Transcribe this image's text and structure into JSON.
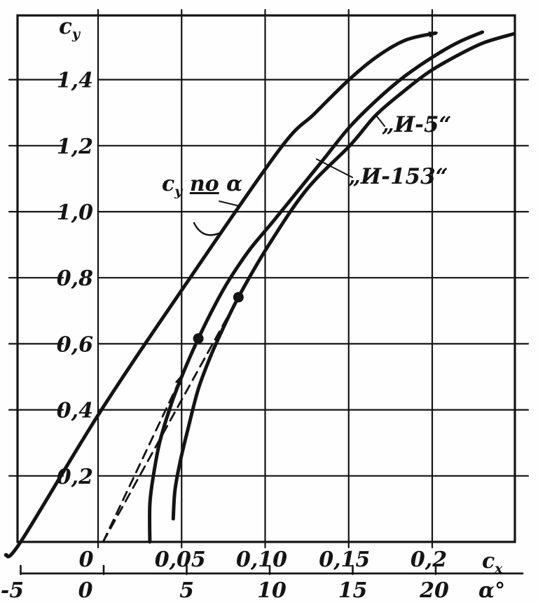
{
  "figure": {
    "kind": "scanned book chart",
    "ink_color": "#141414",
    "paper_color": "#fefefe"
  },
  "chart_data": {
    "type": "line",
    "title": "",
    "description": "Lift coefficient cy versus drag polar cx for aircraft I-5 and I-153, with cy versus angle of attack alpha",
    "grid": true,
    "legend_position": "inline-annotations",
    "y_axis": {
      "title": {
        "base": "с",
        "sub": "у"
      },
      "range": [
        0,
        1.59
      ],
      "ticks": [
        {
          "value": 1.4,
          "label": "1,4"
        },
        {
          "value": 1.2,
          "label": "1,2"
        },
        {
          "value": 1.0,
          "label": "1,0"
        },
        {
          "value": 0.8,
          "label": "0,8"
        },
        {
          "value": 0.6,
          "label": "0,6"
        },
        {
          "value": 0.4,
          "label": "0,4"
        },
        {
          "value": 0.2,
          "label": "0,2"
        }
      ]
    },
    "x_axis_cx": {
      "title": {
        "base": "с",
        "sub": "х"
      },
      "range": [
        -0.024,
        0.25
      ],
      "ticks": [
        {
          "value": 0.0,
          "label": "0"
        },
        {
          "value": 0.05,
          "label": "0,05"
        },
        {
          "value": 0.1,
          "label": "0,10"
        },
        {
          "value": 0.15,
          "label": "0,15"
        },
        {
          "value": 0.2,
          "label": "0,2"
        }
      ]
    },
    "x_axis_alpha": {
      "title": "α°",
      "range": [
        -5.6,
        25.2
      ],
      "ticks": [
        {
          "value": -5,
          "label": "-5"
        },
        {
          "value": 0,
          "label": "0"
        },
        {
          "value": 5,
          "label": "5"
        },
        {
          "value": 10,
          "label": "10"
        },
        {
          "value": 15,
          "label": "15"
        },
        {
          "value": 20,
          "label": "20"
        }
      ]
    },
    "series": [
      {
        "id": "cy-alpha",
        "x_axis": "alpha",
        "label_parts": [
          {
            "t": "с"
          },
          {
            "t": "у",
            "sub": true
          },
          {
            "t": " "
          },
          {
            "t": "по",
            "underline": true
          },
          {
            "t": " α"
          }
        ],
        "arrow_end": true,
        "points": [
          [
            -5.9,
            -0.04
          ],
          [
            -5.0,
            0.0
          ],
          [
            -0.2,
            0.395
          ],
          [
            5.1,
            0.792
          ],
          [
            10.6,
            1.189
          ],
          [
            12.7,
            1.297
          ],
          [
            14.8,
            1.401
          ],
          [
            16.5,
            1.471
          ],
          [
            18.2,
            1.52
          ],
          [
            20.0,
            1.541
          ]
        ]
      },
      {
        "id": "i-153",
        "x_axis": "cx",
        "label_parts": [
          {
            "t": "„И-153“"
          }
        ],
        "arrow_end": false,
        "points": [
          [
            0.031,
            0.0
          ],
          [
            0.031,
            0.113
          ],
          [
            0.033,
            0.197
          ],
          [
            0.037,
            0.304
          ],
          [
            0.044,
            0.42
          ],
          [
            0.051,
            0.512
          ],
          [
            0.06,
            0.616
          ],
          [
            0.07,
            0.718
          ],
          [
            0.079,
            0.798
          ],
          [
            0.091,
            0.887
          ],
          [
            0.105,
            0.972
          ],
          [
            0.122,
            1.078
          ],
          [
            0.135,
            1.159
          ],
          [
            0.151,
            1.259
          ],
          [
            0.168,
            1.344
          ],
          [
            0.184,
            1.412
          ],
          [
            0.201,
            1.471
          ],
          [
            0.216,
            1.514
          ],
          [
            0.23,
            1.544
          ]
        ]
      },
      {
        "id": "i-5",
        "x_axis": "cx",
        "label_parts": [
          {
            "t": "„И-5“"
          }
        ],
        "arrow_end": false,
        "points": [
          [
            0.045,
            0.07
          ],
          [
            0.046,
            0.155
          ],
          [
            0.049,
            0.24
          ],
          [
            0.054,
            0.346
          ],
          [
            0.06,
            0.463
          ],
          [
            0.067,
            0.558
          ],
          [
            0.072,
            0.616
          ],
          [
            0.084,
            0.741
          ],
          [
            0.102,
            0.898
          ],
          [
            0.125,
            1.068
          ],
          [
            0.151,
            1.202
          ],
          [
            0.166,
            1.291
          ],
          [
            0.182,
            1.361
          ],
          [
            0.198,
            1.423
          ],
          [
            0.215,
            1.473
          ],
          [
            0.231,
            1.512
          ],
          [
            0.249,
            1.539
          ]
        ]
      }
    ],
    "point_markers": [
      {
        "series": "i-153",
        "cx": 0.06,
        "cy": 0.616
      },
      {
        "series": "i-5",
        "cx": 0.084,
        "cy": 0.741
      }
    ],
    "dashed_lines": [
      {
        "id": "tangent-i-153",
        "from": [
          0.003,
          0.0
        ],
        "to": [
          0.051,
          0.512
        ],
        "arrow_end": true
      },
      {
        "id": "tangent-i-5",
        "from": [
          0.003,
          0.0
        ],
        "to": [
          0.084,
          0.741
        ],
        "arrow_end": false
      }
    ]
  }
}
